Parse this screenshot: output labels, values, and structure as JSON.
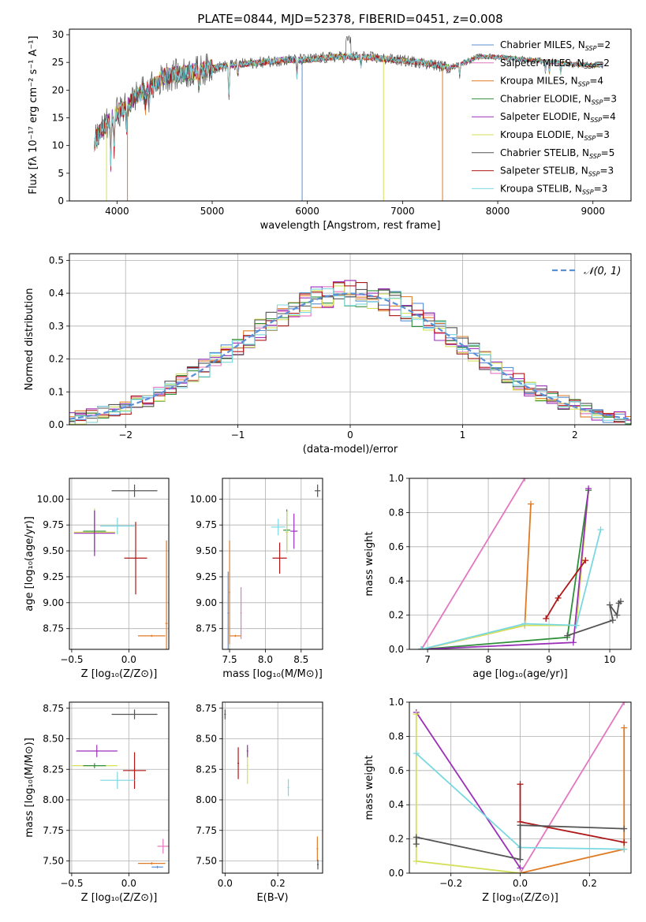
{
  "figure": {
    "title": "PLATE=0844, MJD=52378, FIBERID=0451, z=0.008"
  },
  "colors": {
    "chab_miles": "#5b8fd6",
    "salp_miles": "#e377c2",
    "krou_miles": "#e07b24",
    "chab_elodie": "#2f8f3a",
    "salp_elodie": "#9a2fb8",
    "krou_elodie": "#d5e05a",
    "chab_stelib": "#555555",
    "salp_stelib": "#b01818",
    "krou_stelib": "#7ad8e0",
    "gauss": "#5b8fd6",
    "grid": "#b0b0b0"
  },
  "chart_data": [
    {
      "id": "spectrum",
      "type": "line",
      "xlabel": "wavelength [Angstrom, rest frame]",
      "ylabel": "Flux [fλ 10⁻¹⁷ erg cm⁻² s⁻¹ A⁻¹]",
      "xlim": [
        3500,
        9400
      ],
      "ylim": [
        0,
        31
      ],
      "xticks": [
        4000,
        5000,
        6000,
        7000,
        8000,
        9000
      ],
      "yticks": [
        0,
        5,
        10,
        15,
        20,
        25,
        30
      ],
      "grid": false,
      "legend": "top-right",
      "series": [
        {
          "name": "Chabrier MILES, N_SSP=2",
          "color_key": "chab_miles"
        },
        {
          "name": "Salpeter MILES, N_SSP=2",
          "color_key": "salp_miles"
        },
        {
          "name": "Kroupa MILES, N_SSP=4",
          "color_key": "krou_miles"
        },
        {
          "name": "Chabrier ELODIE, N_SSP=3",
          "color_key": "chab_elodie"
        },
        {
          "name": "Salpeter ELODIE, N_SSP=4",
          "color_key": "salp_elodie"
        },
        {
          "name": "Kroupa ELODIE, N_SSP=3",
          "color_key": "krou_elodie"
        },
        {
          "name": "Chabrier STELIB, N_SSP=5",
          "color_key": "chab_stelib"
        },
        {
          "name": "Salpeter STELIB, N_SSP=3",
          "color_key": "salp_stelib"
        },
        {
          "name": "Kroupa STELIB, N_SSP=3",
          "color_key": "krou_stelib"
        }
      ],
      "continuum": [
        [
          3750,
          10
        ],
        [
          3800,
          12
        ],
        [
          3900,
          14
        ],
        [
          4000,
          16
        ],
        [
          4100,
          17
        ],
        [
          4200,
          19
        ],
        [
          4300,
          20
        ],
        [
          4400,
          21
        ],
        [
          4500,
          22.5
        ],
        [
          4700,
          23
        ],
        [
          5000,
          24
        ],
        [
          5200,
          24.5
        ],
        [
          5500,
          25
        ],
        [
          5800,
          25.5
        ],
        [
          6000,
          25.5
        ],
        [
          6300,
          26
        ],
        [
          6600,
          26
        ],
        [
          6900,
          25.5
        ],
        [
          7200,
          25
        ],
        [
          7500,
          24
        ],
        [
          7800,
          26
        ],
        [
          8000,
          26
        ],
        [
          8300,
          25.5
        ],
        [
          8600,
          25
        ],
        [
          8900,
          24.5
        ],
        [
          9100,
          24.5
        ]
      ],
      "drops": [
        [
          3890,
          0,
          "krou_elodie"
        ],
        [
          4110,
          0,
          "krou_miles"
        ],
        [
          5945,
          0,
          "chab_miles"
        ],
        [
          6800,
          0,
          "krou_elodie"
        ],
        [
          7420,
          0,
          "krou_miles"
        ]
      ]
    },
    {
      "id": "residuals",
      "type": "step",
      "xlabel": "(data-model)/error",
      "ylabel": "Normed distribution",
      "xlim": [
        -2.5,
        2.5
      ],
      "ylim": [
        0,
        0.52
      ],
      "xticks": [
        -2,
        -1,
        0,
        1,
        2
      ],
      "yticks": [
        0.0,
        0.1,
        0.2,
        0.3,
        0.4,
        0.5
      ],
      "grid": true,
      "legend": "top-right",
      "reference_name": "𝒩(0, 1)",
      "bin_width": 0.1
    },
    {
      "id": "age_vs_Z",
      "type": "scatter",
      "xlabel": "Z [log₁₀(Z/Z⊙)]",
      "ylabel": "age  [log₁₀(age/yr)]",
      "xlim": [
        -0.52,
        0.35
      ],
      "ylim": [
        8.55,
        10.2
      ],
      "xticks": [
        -0.5,
        0.0
      ],
      "yticks": [
        8.75,
        9.0,
        9.25,
        9.5,
        9.75,
        10.0
      ],
      "points": [
        {
          "x": 0.33,
          "y": 8.8,
          "xe": 0.01,
          "ye": 0.8,
          "c": "krou_miles"
        },
        {
          "x": 0.05,
          "y": 10.08,
          "xe": 0.2,
          "ye": 0.06,
          "c": "chab_stelib"
        },
        {
          "x": 0.06,
          "y": 9.43,
          "xe": 0.1,
          "ye": 0.35,
          "c": "salp_stelib"
        },
        {
          "x": -0.3,
          "y": 9.68,
          "xe": 0.18,
          "ye": 0.23,
          "c": "krou_elodie"
        },
        {
          "x": -0.3,
          "y": 9.69,
          "xe": 0.1,
          "ye": 0.2,
          "c": "chab_elodie"
        },
        {
          "x": -0.3,
          "y": 9.67,
          "xe": 0.18,
          "ye": 0.22,
          "c": "salp_elodie"
        },
        {
          "x": -0.1,
          "y": 9.74,
          "xe": 0.15,
          "ye": 0.08,
          "c": "krou_stelib"
        },
        {
          "x": 0.2,
          "y": 8.68,
          "xe": 0.12,
          "ye": 0.01,
          "c": "krou_miles"
        }
      ]
    },
    {
      "id": "age_vs_mass",
      "type": "scatter",
      "xlabel": "mass [log₁₀(M/M⊙)]",
      "ylabel": "",
      "xlim": [
        7.4,
        8.8
      ],
      "ylim": [
        8.55,
        10.2
      ],
      "xticks": [
        7.5,
        8.0,
        8.5
      ],
      "yticks": [
        8.75,
        9.0,
        9.25,
        9.5,
        9.75,
        10.0
      ],
      "points": [
        {
          "x": 7.48,
          "y": 8.9,
          "xe": 0.01,
          "ye": 0.4,
          "c": "chab_miles"
        },
        {
          "x": 7.5,
          "y": 9.1,
          "xe": 0.01,
          "ye": 0.5,
          "c": "krou_miles"
        },
        {
          "x": 7.58,
          "y": 8.68,
          "xe": 0.08,
          "ye": 0.01,
          "c": "krou_miles"
        },
        {
          "x": 7.66,
          "y": 8.9,
          "xe": 0.01,
          "ye": 0.25,
          "c": "salp_miles"
        },
        {
          "x": 8.73,
          "y": 10.08,
          "xe": 0.04,
          "ye": 0.06,
          "c": "chab_stelib"
        },
        {
          "x": 8.2,
          "y": 9.43,
          "xe": 0.1,
          "ye": 0.15,
          "c": "salp_stelib"
        },
        {
          "x": 8.3,
          "y": 9.7,
          "xe": 0.05,
          "ye": 0.2,
          "c": "chab_elodie"
        },
        {
          "x": 8.4,
          "y": 9.69,
          "xe": 0.05,
          "ye": 0.17,
          "c": "salp_elodie"
        },
        {
          "x": 8.18,
          "y": 9.73,
          "xe": 0.1,
          "ye": 0.08,
          "c": "krou_stelib"
        },
        {
          "x": 8.3,
          "y": 9.68,
          "xe": 0.02,
          "ye": 0.2,
          "c": "krou_elodie"
        }
      ]
    },
    {
      "id": "weight_vs_age",
      "type": "line",
      "xlabel": "age  [log₁₀(age/yr)]",
      "ylabel": "mass weight",
      "xlim": [
        6.7,
        10.35
      ],
      "ylim": [
        0,
        1.0
      ],
      "xticks": [
        7,
        8,
        9,
        10
      ],
      "yticks": [
        0.0,
        0.2,
        0.4,
        0.6,
        0.8,
        1.0
      ],
      "grid": true,
      "series": [
        {
          "c": "salp_miles",
          "x": [
            6.9,
            8.6
          ],
          "y": [
            0.0,
            1.0
          ]
        },
        {
          "c": "krou_miles",
          "x": [
            6.9,
            8.6,
            8.7
          ],
          "y": [
            0.0,
            0.14,
            0.85
          ]
        },
        {
          "c": "krou_elodie",
          "x": [
            6.9,
            8.6,
            9.45,
            9.65
          ],
          "y": [
            0.0,
            0.14,
            0.14,
            0.93
          ]
        },
        {
          "c": "chab_elodie",
          "x": [
            6.9,
            9.3,
            9.65
          ],
          "y": [
            0.0,
            0.07,
            0.93
          ]
        },
        {
          "c": "salp_elodie",
          "x": [
            6.9,
            9.4,
            9.65
          ],
          "y": [
            0.0,
            0.04,
            0.94
          ]
        },
        {
          "c": "krou_stelib",
          "x": [
            6.9,
            8.6,
            9.45,
            9.85
          ],
          "y": [
            0.0,
            0.15,
            0.14,
            0.7
          ]
        },
        {
          "c": "salp_stelib",
          "x": [
            8.95,
            9.15,
            9.6
          ],
          "y": [
            0.18,
            0.3,
            0.52
          ]
        },
        {
          "c": "chab_stelib",
          "x": [
            9.3,
            10.05,
            10.0,
            10.12,
            10.15,
            10.18
          ],
          "y": [
            0.08,
            0.17,
            0.26,
            0.2,
            0.27,
            0.28
          ]
        }
      ]
    },
    {
      "id": "mass_vs_Z",
      "type": "scatter",
      "xlabel": "Z [log₁₀(Z/Z⊙)]",
      "ylabel": "mass [log₁₀(M/M⊙)]",
      "xlim": [
        -0.52,
        0.35
      ],
      "ylim": [
        7.4,
        8.8
      ],
      "xticks": [
        -0.5,
        0.0
      ],
      "yticks": [
        7.5,
        7.75,
        8.0,
        8.25,
        8.5,
        8.75
      ],
      "points": [
        {
          "x": 0.05,
          "y": 8.7,
          "xe": 0.2,
          "ye": 0.04,
          "c": "chab_stelib"
        },
        {
          "x": -0.28,
          "y": 8.4,
          "xe": 0.18,
          "ye": 0.05,
          "c": "salp_elodie"
        },
        {
          "x": 0.05,
          "y": 8.24,
          "xe": 0.1,
          "ye": 0.15,
          "c": "salp_stelib"
        },
        {
          "x": -0.3,
          "y": 8.28,
          "xe": 0.2,
          "ye": 0.02,
          "c": "krou_elodie"
        },
        {
          "x": -0.3,
          "y": 8.28,
          "xe": 0.1,
          "ye": 0.02,
          "c": "chab_elodie"
        },
        {
          "x": -0.1,
          "y": 8.16,
          "xe": 0.15,
          "ye": 0.07,
          "c": "krou_stelib"
        },
        {
          "x": 0.2,
          "y": 7.48,
          "xe": 0.12,
          "ye": 0.01,
          "c": "krou_miles"
        },
        {
          "x": 0.25,
          "y": 7.45,
          "xe": 0.05,
          "ye": 0.01,
          "c": "chab_miles"
        },
        {
          "x": 0.3,
          "y": 7.62,
          "xe": 0.05,
          "ye": 0.06,
          "c": "salp_miles"
        }
      ]
    },
    {
      "id": "mass_vs_EBV",
      "type": "scatter",
      "xlabel": "E(B-V)",
      "ylabel": "",
      "xlim": [
        -0.01,
        0.37
      ],
      "ylim": [
        7.4,
        8.8
      ],
      "xticks": [
        0.0,
        0.2
      ],
      "yticks": [
        7.5,
        7.75,
        8.0,
        8.25,
        8.5,
        8.75
      ],
      "points": [
        {
          "x": 0.0,
          "y": 8.7,
          "xe": 0.003,
          "ye": 0.04,
          "c": "chab_stelib"
        },
        {
          "x": 0.05,
          "y": 8.3,
          "xe": 0.003,
          "ye": 0.13,
          "c": "salp_stelib"
        },
        {
          "x": 0.085,
          "y": 8.28,
          "xe": 0.003,
          "ye": 0.15,
          "c": "krou_elodie"
        },
        {
          "x": 0.085,
          "y": 8.4,
          "xe": 0.003,
          "ye": 0.05,
          "c": "salp_elodie"
        },
        {
          "x": 0.24,
          "y": 8.1,
          "xe": 0.003,
          "ye": 0.07,
          "c": "krou_stelib"
        },
        {
          "x": 0.35,
          "y": 7.6,
          "xe": 0.003,
          "ye": 0.1,
          "c": "krou_miles"
        },
        {
          "x": 0.352,
          "y": 7.47,
          "xe": 0.003,
          "ye": 0.04,
          "c": "chab_stelib"
        }
      ]
    },
    {
      "id": "weight_vs_Z",
      "type": "line",
      "xlabel": "Z [log₁₀(Z/Z⊙)]",
      "ylabel": "mass weight",
      "xlim": [
        -0.32,
        0.32
      ],
      "ylim": [
        0,
        1.0
      ],
      "xticks": [
        -0.2,
        0.0,
        0.2
      ],
      "yticks": [
        0.0,
        0.2,
        0.4,
        0.6,
        0.8,
        1.0
      ],
      "grid": true,
      "series": [
        {
          "c": "salp_miles",
          "x": [
            0.0,
            0.3
          ],
          "y": [
            0.0,
            1.0
          ]
        },
        {
          "c": "krou_miles",
          "x": [
            0.0,
            0.3,
            0.3
          ],
          "y": [
            0.0,
            0.14,
            0.85
          ]
        },
        {
          "c": "salp_elodie",
          "x": [
            -0.3,
            0.0
          ],
          "y": [
            0.94,
            0.03
          ]
        },
        {
          "c": "krou_elodie",
          "x": [
            -0.3,
            -0.3,
            0.0
          ],
          "y": [
            0.93,
            0.07,
            0.0
          ]
        },
        {
          "c": "krou_stelib",
          "x": [
            -0.3,
            0.0,
            0.3
          ],
          "y": [
            0.7,
            0.15,
            0.14
          ]
        },
        {
          "c": "salp_stelib",
          "x": [
            0.0,
            0.0,
            0.3
          ],
          "y": [
            0.52,
            0.3,
            0.18
          ]
        },
        {
          "c": "chab_stelib",
          "x": [
            -0.3,
            -0.3,
            0.0,
            0.0,
            0.3
          ],
          "y": [
            0.17,
            0.21,
            0.08,
            0.28,
            0.26
          ]
        }
      ]
    }
  ]
}
